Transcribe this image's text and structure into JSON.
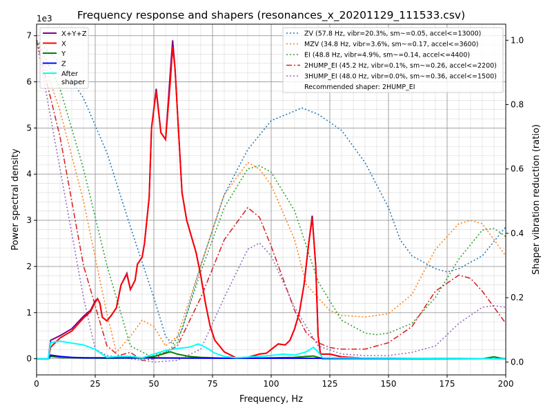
{
  "chart_data": {
    "type": "line",
    "title": "Frequency response and shapers (resonances_x_20201129_111533.csv)",
    "xlabel": "Frequency, Hz",
    "ylabel": "Power spectral density",
    "ylabel_right": "Shaper vibration reduction (ratio)",
    "y_offset_label": "1e3",
    "xlim": [
      0,
      200
    ],
    "ylim": [
      -0.35,
      7.25
    ],
    "ylim_right": [
      -0.04,
      1.05
    ],
    "x_ticks": [
      "0",
      "25",
      "50",
      "75",
      "100",
      "125",
      "150",
      "175",
      "200"
    ],
    "y_ticks": [
      "0",
      "1",
      "2",
      "3",
      "4",
      "5",
      "6",
      "7"
    ],
    "y_ticks_right": [
      "0.0",
      "0.2",
      "0.4",
      "0.6",
      "0.8",
      "1.0"
    ],
    "grid": true,
    "legend_left_position": "top-left",
    "legend_right_position": "top-right",
    "recommended_text": "Recommended shaper: 2HUMP_EI",
    "psd_series": [
      {
        "name": "X+Y+Z",
        "color": "#800080",
        "x": [
          0,
          5,
          6,
          10,
          15,
          20,
          23,
          25,
          26,
          27,
          28,
          30,
          32,
          34,
          36,
          38.5,
          40,
          42,
          43,
          45,
          46,
          48,
          49,
          51,
          53,
          55,
          57,
          58,
          59,
          61,
          62,
          64,
          68,
          70,
          72,
          74,
          76,
          80,
          85,
          90,
          95,
          98,
          100,
          103,
          106,
          108,
          110,
          112,
          114,
          116,
          117.5,
          119,
          120,
          121,
          123,
          125,
          130,
          140,
          150,
          200
        ],
        "y": [
          0,
          0,
          0.4,
          0.5,
          0.65,
          0.92,
          1.05,
          1.25,
          1.3,
          1.2,
          0.9,
          0.82,
          0.95,
          1.1,
          1.6,
          1.85,
          1.5,
          1.7,
          2.05,
          2.2,
          2.5,
          3.5,
          5.0,
          5.85,
          4.9,
          4.75,
          6.2,
          6.9,
          6.3,
          4.5,
          3.6,
          3.0,
          2.3,
          1.8,
          1.2,
          0.7,
          0.4,
          0.15,
          0.02,
          0.03,
          0.1,
          0.12,
          0.2,
          0.32,
          0.3,
          0.4,
          0.65,
          1.0,
          1.6,
          2.5,
          3.1,
          2.0,
          0.5,
          0.1,
          0.1,
          0.1,
          0.04,
          0.01,
          0.01,
          0
        ]
      },
      {
        "name": "X",
        "color": "#ff0000",
        "x": [
          0,
          5,
          6,
          10,
          15,
          20,
          23,
          25,
          26,
          27,
          28,
          30,
          32,
          34,
          36,
          38.5,
          40,
          42,
          43,
          45,
          46,
          48,
          49,
          51,
          53,
          55,
          57,
          58,
          59,
          61,
          62,
          64,
          68,
          70,
          72,
          74,
          76,
          80,
          85,
          90,
          95,
          98,
          100,
          103,
          106,
          108,
          110,
          112,
          114,
          116,
          117.5,
          119,
          120,
          121,
          123,
          125,
          130,
          140,
          150,
          200
        ],
        "y": [
          0,
          0,
          0.25,
          0.45,
          0.6,
          0.88,
          1.02,
          1.22,
          1.3,
          1.2,
          0.9,
          0.82,
          0.95,
          1.1,
          1.6,
          1.83,
          1.5,
          1.7,
          2.05,
          2.2,
          2.5,
          3.5,
          5.0,
          5.8,
          4.9,
          4.75,
          6.0,
          6.75,
          6.3,
          4.5,
          3.6,
          3.0,
          2.3,
          1.8,
          1.2,
          0.7,
          0.4,
          0.15,
          0.02,
          0.03,
          0.1,
          0.12,
          0.2,
          0.32,
          0.3,
          0.4,
          0.65,
          1.0,
          1.6,
          2.5,
          3.05,
          2.0,
          0.5,
          0.1,
          0.1,
          0.1,
          0.04,
          0.01,
          0.01,
          0
        ]
      },
      {
        "name": "Y",
        "color": "#008000",
        "x": [
          0,
          5,
          6,
          10,
          20,
          30,
          40,
          45,
          50,
          55,
          57,
          60,
          65,
          70,
          80,
          90,
          100,
          110,
          115,
          118,
          120,
          122,
          190,
          195,
          198,
          200
        ],
        "y": [
          0,
          0,
          0.05,
          0.03,
          0.02,
          0.01,
          0.02,
          0.01,
          0.05,
          0.12,
          0.15,
          0.1,
          0.05,
          0.03,
          0.01,
          0.01,
          0.02,
          0.03,
          0.05,
          0.06,
          0.03,
          0.0,
          0.0,
          0.04,
          0.01,
          0
        ]
      },
      {
        "name": "Z",
        "color": "#0000ff",
        "x": [
          0,
          5,
          6,
          10,
          15,
          20,
          30,
          50,
          80,
          120,
          200
        ],
        "y": [
          0,
          0,
          0.08,
          0.05,
          0.03,
          0.02,
          0.02,
          0.02,
          0.01,
          0.01,
          0
        ]
      },
      {
        "name": "After\nshaper",
        "color": "#00ffff",
        "x": [
          0,
          5,
          6,
          10,
          20,
          25,
          30,
          35,
          40,
          45,
          50,
          55,
          60,
          65,
          69,
          72,
          76,
          80,
          85,
          95,
          100,
          105,
          110,
          115,
          118,
          120,
          122,
          200
        ],
        "y": [
          0,
          0,
          0.35,
          0.38,
          0.3,
          0.2,
          0.03,
          0.05,
          0.05,
          0.02,
          0.1,
          0.18,
          0.22,
          0.25,
          0.32,
          0.25,
          0.12,
          0.05,
          0.02,
          0.05,
          0.07,
          0.1,
          0.08,
          0.15,
          0.25,
          0.15,
          0.02,
          0
        ]
      }
    ],
    "shaper_series": [
      {
        "name": "ZV (57.8 Hz, vibr=20.3%, sm~=0.05, accel<=13000)",
        "color": "#1f77b4",
        "dash": "2,3",
        "x": [
          0,
          10,
          20,
          30,
          40,
          50,
          55,
          58,
          62,
          70,
          80,
          90,
          100,
          110,
          113,
          120,
          130,
          140,
          150,
          155,
          160,
          170,
          175,
          180,
          190,
          200
        ],
        "y": [
          1.0,
          0.93,
          0.82,
          0.65,
          0.42,
          0.2,
          0.08,
          0.055,
          0.1,
          0.3,
          0.52,
          0.66,
          0.75,
          0.78,
          0.79,
          0.77,
          0.72,
          0.62,
          0.48,
          0.38,
          0.33,
          0.29,
          0.28,
          0.29,
          0.33,
          0.42
        ]
      },
      {
        "name": "MZV (34.8 Hz, vibr=3.6%, sm~=0.17, accel<=3600)",
        "color": "#ff7f0e",
        "dash": "2,3",
        "x": [
          0,
          10,
          20,
          30,
          34,
          40,
          45,
          50,
          55,
          60,
          70,
          80,
          90,
          95,
          100,
          110,
          115,
          120,
          125,
          130,
          140,
          150,
          160,
          170,
          180,
          185,
          190,
          200
        ],
        "y": [
          1.0,
          0.78,
          0.5,
          0.15,
          0.03,
          0.08,
          0.13,
          0.11,
          0.05,
          0.08,
          0.3,
          0.52,
          0.62,
          0.6,
          0.55,
          0.38,
          0.24,
          0.2,
          0.16,
          0.145,
          0.14,
          0.15,
          0.21,
          0.35,
          0.43,
          0.44,
          0.43,
          0.33
        ]
      },
      {
        "name": "EI (48.8 Hz, vibr=4.9%, sm~=0.14, accel<=4400)",
        "color": "#2ca02c",
        "dash": "2,3",
        "x": [
          0,
          10,
          20,
          30,
          40,
          48,
          55,
          60,
          70,
          80,
          90,
          95,
          100,
          110,
          120,
          130,
          140,
          145,
          150,
          160,
          170,
          180,
          190,
          195,
          200
        ],
        "y": [
          1.0,
          0.85,
          0.6,
          0.3,
          0.05,
          0.02,
          0.03,
          0.06,
          0.28,
          0.48,
          0.6,
          0.61,
          0.59,
          0.47,
          0.25,
          0.13,
          0.09,
          0.085,
          0.09,
          0.12,
          0.2,
          0.32,
          0.41,
          0.415,
          0.39
        ]
      },
      {
        "name": "2HUMP_EI (45.2 Hz, vibr=0.1%, sm~=0.26, accel<=2200)",
        "color": "#d62728",
        "dash": "8,3,2,3",
        "x": [
          0,
          10,
          20,
          30,
          35,
          40,
          45,
          50,
          60,
          70,
          80,
          90,
          95,
          100,
          110,
          115,
          120,
          125,
          130,
          140,
          150,
          160,
          170,
          180,
          185,
          190,
          200
        ],
        "y": [
          1.0,
          0.7,
          0.3,
          0.05,
          0.02,
          0.03,
          0.005,
          0.01,
          0.05,
          0.2,
          0.38,
          0.48,
          0.45,
          0.36,
          0.16,
          0.09,
          0.06,
          0.045,
          0.04,
          0.04,
          0.06,
          0.11,
          0.22,
          0.27,
          0.26,
          0.22,
          0.12
        ]
      },
      {
        "name": "3HUMP_EI (48.0 Hz, vibr=0.0%, sm~=0.36, accel<=1500)",
        "color": "#9467bd",
        "dash": "2,3",
        "x": [
          0,
          10,
          20,
          25,
          30,
          40,
          50,
          60,
          70,
          80,
          90,
          95,
          100,
          110,
          120,
          130,
          140,
          150,
          160,
          170,
          180,
          190,
          195,
          200
        ],
        "y": [
          1.0,
          0.6,
          0.2,
          0.04,
          0.02,
          0.01,
          0.0,
          0.005,
          0.04,
          0.2,
          0.35,
          0.37,
          0.33,
          0.17,
          0.05,
          0.025,
          0.02,
          0.02,
          0.03,
          0.05,
          0.12,
          0.17,
          0.175,
          0.17
        ]
      }
    ]
  }
}
